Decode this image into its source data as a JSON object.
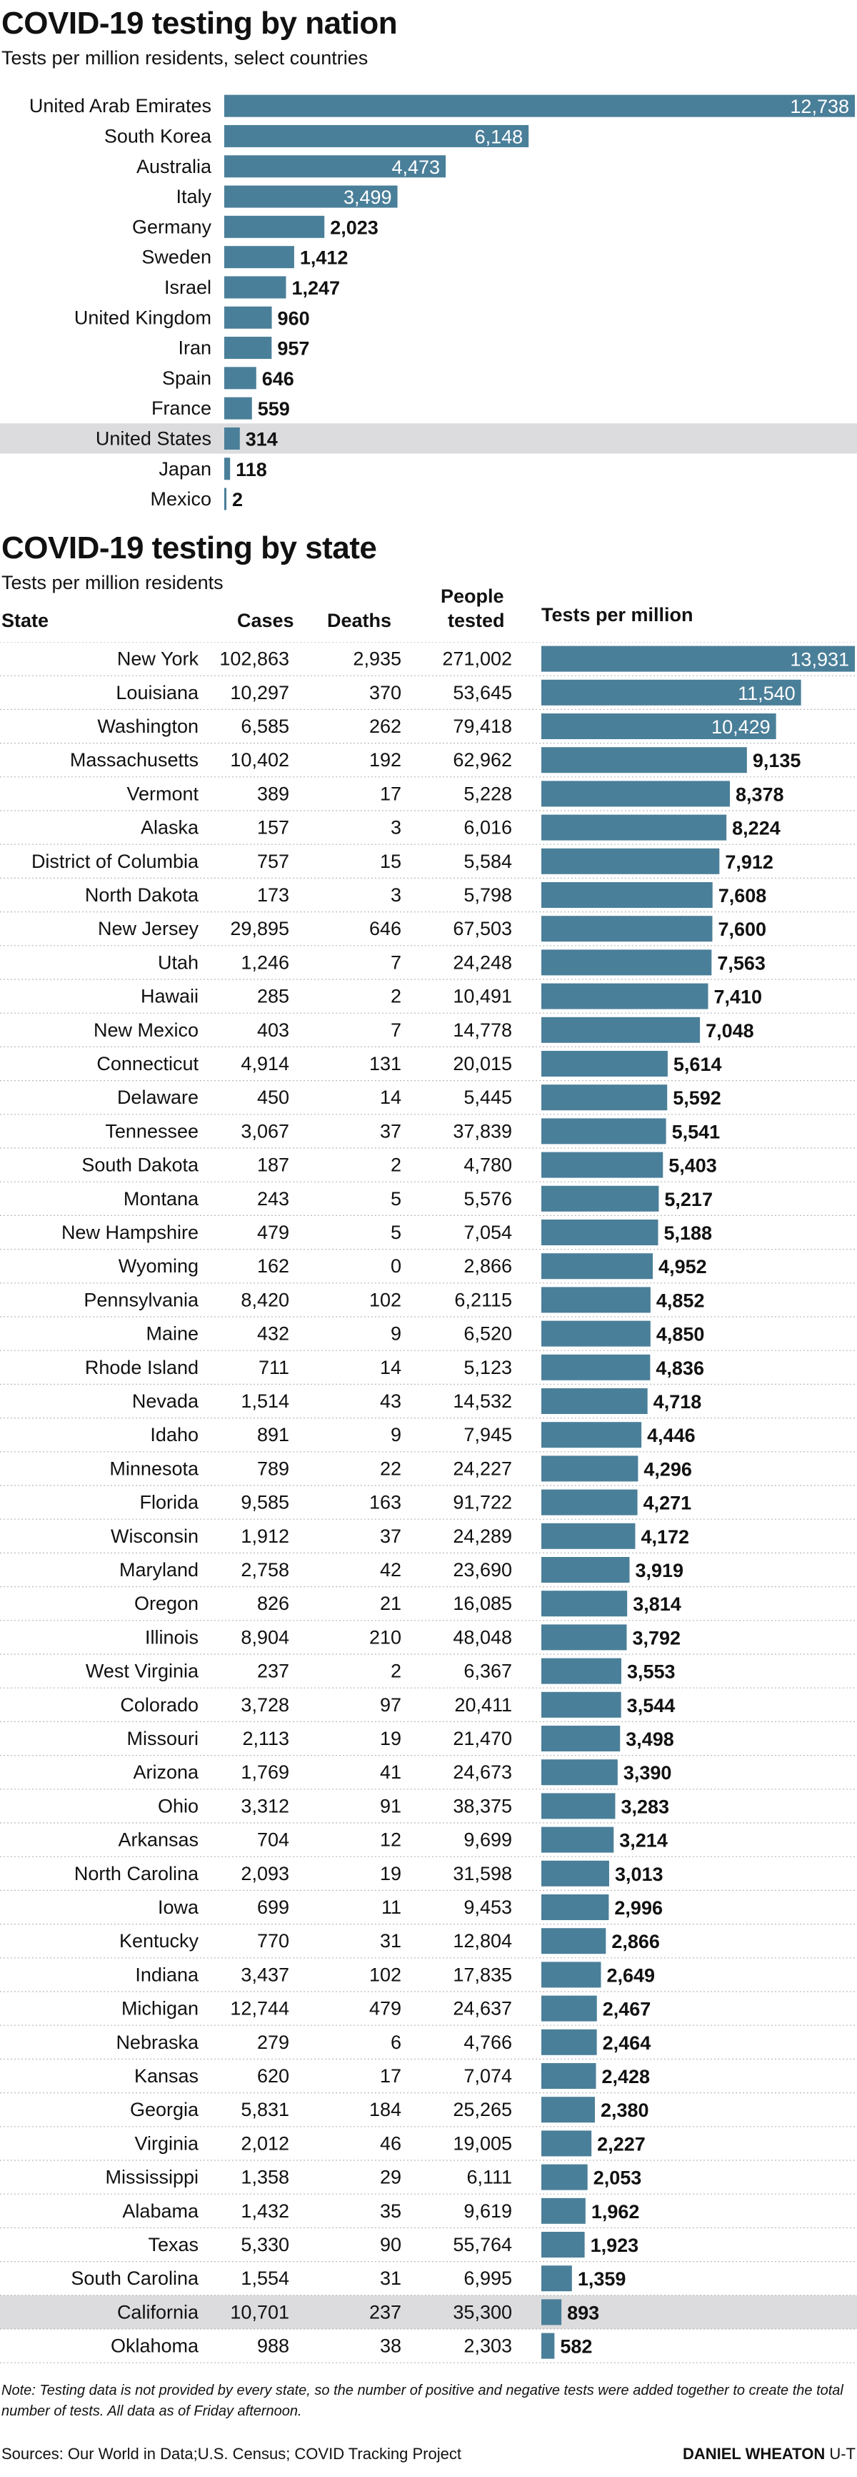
{
  "nation": {
    "title": "COVID-19 testing by nation",
    "subtitle": "Tests per million residents, select countries"
  },
  "state": {
    "title": "COVID-19 testing by state",
    "subtitle": "Tests per million residents",
    "headers": {
      "state": "State",
      "cases": "Cases",
      "deaths": "Deaths",
      "people_line1": "People",
      "people_line2": "tested",
      "tests": "Tests per million"
    }
  },
  "colors": {
    "bar": "#4a7f99",
    "highlight_row": "#dcdcde",
    "value_text_inside": "#ffffff",
    "value_text_outside": "#111111"
  },
  "chart_data": [
    {
      "type": "bar",
      "orientation": "horizontal",
      "title": "COVID-19 testing by nation",
      "subtitle": "Tests per million residents, select countries",
      "categories": [
        "United Arab Emirates",
        "South Korea",
        "Australia",
        "Italy",
        "Germany",
        "Sweden",
        "Israel",
        "United Kingdom",
        "Iran",
        "Spain",
        "France",
        "United States",
        "Japan",
        "Mexico"
      ],
      "values": [
        12738,
        6148,
        4473,
        3499,
        2023,
        1412,
        1247,
        960,
        957,
        646,
        559,
        314,
        118,
        2
      ],
      "value_labels": [
        "12,738",
        "6,148",
        "4,473",
        "3,499",
        "2,023",
        "1,412",
        "1,247",
        "960",
        "957",
        "646",
        "559",
        "314",
        "118",
        "2"
      ],
      "highlight": "United States"
    },
    {
      "type": "table",
      "title": "COVID-19 testing by state",
      "subtitle": "Tests per million residents",
      "columns": [
        "State",
        "Cases",
        "Deaths",
        "People tested",
        "Tests per million"
      ],
      "highlight": "California",
      "rows": [
        [
          "New York",
          "102,863",
          "2,935",
          "271,002",
          "13,931"
        ],
        [
          "Louisiana",
          "10,297",
          "370",
          "53,645",
          "11,540"
        ],
        [
          "Washington",
          "6,585",
          "262",
          "79,418",
          "10,429"
        ],
        [
          "Massachusetts",
          "10,402",
          "192",
          "62,962",
          "9,135"
        ],
        [
          "Vermont",
          "389",
          "17",
          "5,228",
          "8,378"
        ],
        [
          "Alaska",
          "157",
          "3",
          "6,016",
          "8,224"
        ],
        [
          "District of Columbia",
          "757",
          "15",
          "5,584",
          "7,912"
        ],
        [
          "North Dakota",
          "173",
          "3",
          "5,798",
          "7,608"
        ],
        [
          "New Jersey",
          "29,895",
          "646",
          "67,503",
          "7,600"
        ],
        [
          "Utah",
          "1,246",
          "7",
          "24,248",
          "7,563"
        ],
        [
          "Hawaii",
          "285",
          "2",
          "10,491",
          "7,410"
        ],
        [
          "New Mexico",
          "403",
          "7",
          "14,778",
          "7,048"
        ],
        [
          "Connecticut",
          "4,914",
          "131",
          "20,015",
          "5,614"
        ],
        [
          "Delaware",
          "450",
          "14",
          "5,445",
          "5,592"
        ],
        [
          "Tennessee",
          "3,067",
          "37",
          "37,839",
          "5,541"
        ],
        [
          "South Dakota",
          "187",
          "2",
          "4,780",
          "5,403"
        ],
        [
          "Montana",
          "243",
          "5",
          "5,576",
          "5,217"
        ],
        [
          "New Hampshire",
          "479",
          "5",
          "7,054",
          "5,188"
        ],
        [
          "Wyoming",
          "162",
          "0",
          "2,866",
          "4,952"
        ],
        [
          "Pennsylvania",
          "8,420",
          "102",
          "6,2115",
          "4,852"
        ],
        [
          "Maine",
          "432",
          "9",
          "6,520",
          "4,850"
        ],
        [
          "Rhode Island",
          "711",
          "14",
          "5,123",
          "4,836"
        ],
        [
          "Nevada",
          "1,514",
          "43",
          "14,532",
          "4,718"
        ],
        [
          "Idaho",
          "891",
          "9",
          "7,945",
          "4,446"
        ],
        [
          "Minnesota",
          "789",
          "22",
          "24,227",
          "4,296"
        ],
        [
          "Florida",
          "9,585",
          "163",
          "91,722",
          "4,271"
        ],
        [
          "Wisconsin",
          "1,912",
          "37",
          "24,289",
          "4,172"
        ],
        [
          "Maryland",
          "2,758",
          "42",
          "23,690",
          "3,919"
        ],
        [
          "Oregon",
          "826",
          "21",
          "16,085",
          "3,814"
        ],
        [
          "Illinois",
          "8,904",
          "210",
          "48,048",
          "3,792"
        ],
        [
          "West Virginia",
          "237",
          "2",
          "6,367",
          "3,553"
        ],
        [
          "Colorado",
          "3,728",
          "97",
          "20,411",
          "3,544"
        ],
        [
          "Missouri",
          "2,113",
          "19",
          "21,470",
          "3,498"
        ],
        [
          "Arizona",
          "1,769",
          "41",
          "24,673",
          "3,390"
        ],
        [
          "Ohio",
          "3,312",
          "91",
          "38,375",
          "3,283"
        ],
        [
          "Arkansas",
          "704",
          "12",
          "9,699",
          "3,214"
        ],
        [
          "North Carolina",
          "2,093",
          "19",
          "31,598",
          "3,013"
        ],
        [
          "Iowa",
          "699",
          "11",
          "9,453",
          "2,996"
        ],
        [
          "Kentucky",
          "770",
          "31",
          "12,804",
          "2,866"
        ],
        [
          "Indiana",
          "3,437",
          "102",
          "17,835",
          "2,649"
        ],
        [
          "Michigan",
          "12,744",
          "479",
          "24,637",
          "2,467"
        ],
        [
          "Nebraska",
          "279",
          "6",
          "4,766",
          "2,464"
        ],
        [
          "Kansas",
          "620",
          "17",
          "7,074",
          "2,428"
        ],
        [
          "Georgia",
          "5,831",
          "184",
          "25,265",
          "2,380"
        ],
        [
          "Virginia",
          "2,012",
          "46",
          "19,005",
          "2,227"
        ],
        [
          "Mississippi",
          "1,358",
          "29",
          "6,111",
          "2,053"
        ],
        [
          "Alabama",
          "1,432",
          "35",
          "9,619",
          "1,962"
        ],
        [
          "Texas",
          "5,330",
          "90",
          "55,764",
          "1,923"
        ],
        [
          "South Carolina",
          "1,554",
          "31",
          "6,995",
          "1,359"
        ],
        [
          "California",
          "10,701",
          "237",
          "35,300",
          "893"
        ],
        [
          "Oklahoma",
          "988",
          "38",
          "2,303",
          "582"
        ]
      ]
    }
  ],
  "footer": {
    "note": "Note: Testing data is not provided by every state, so the number of positive and negative tests were added together to create the total number of tests. All data as of Friday afternoon.",
    "sources": "Sources: Our World in Data;U.S. Census; COVID Tracking Project",
    "credit_name": "DANIEL WHEATON",
    "credit_org": "U-T"
  }
}
